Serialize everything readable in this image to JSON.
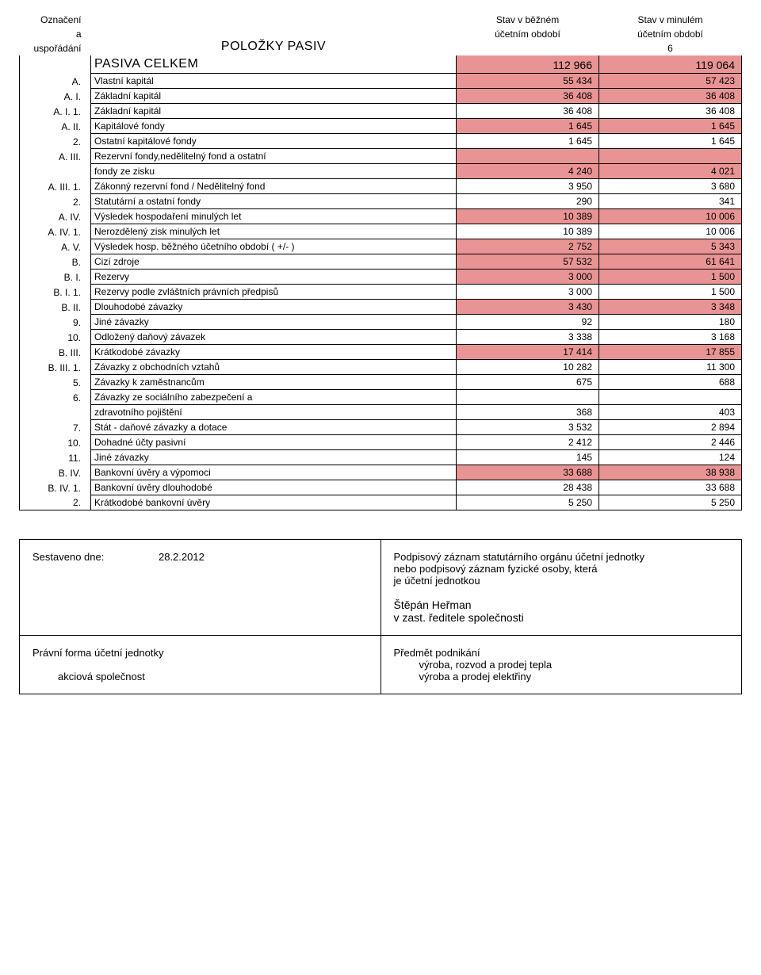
{
  "colors": {
    "highlight": "#e99494",
    "border": "#000000",
    "text": "#000000",
    "background": "#ffffff"
  },
  "fonts": {
    "family": "Arial",
    "base_size_pt": 12,
    "title_size_pt": 16
  },
  "header": {
    "col_code_top": "Označení",
    "col_code_mid": "a",
    "col_code_bot": "uspořádání",
    "title": "POLOŽKY PASIV",
    "col_v1_top": "Stav v běžném",
    "col_v1_bot": "účetním období",
    "col_v2_top": "Stav v minulém",
    "col_v2_bot": "účetním období",
    "page_marker": "6"
  },
  "rows": [
    {
      "code": "",
      "label": "PASIVA  CELKEM",
      "v1": "112 966",
      "v2": "119 064",
      "hl": true,
      "big": true
    },
    {
      "code": "A.",
      "label": "Vlastní kapitál",
      "v1": "55 434",
      "v2": "57 423",
      "hl": true
    },
    {
      "code": "A.  I.",
      "label": "Základní kapitál",
      "v1": "36 408",
      "v2": "36 408",
      "hl": true
    },
    {
      "code": "A.  I.  1.",
      "label": "Základní kapitál",
      "v1": "36 408",
      "v2": "36 408",
      "hl": false
    },
    {
      "code": "A.  II.",
      "label": "Kapitálové fondy",
      "v1": "1 645",
      "v2": "1 645",
      "hl": true
    },
    {
      "code": "2.",
      "label": "Ostatní kapitálové fondy",
      "v1": "1 645",
      "v2": "1 645",
      "hl": false
    },
    {
      "code": "A. III.",
      "label": "Rezervní fondy,nedělitelný fond a ostatní",
      "v1": "",
      "v2": "",
      "hl": true
    },
    {
      "code": "",
      "label": "fondy ze zisku",
      "v1": "4 240",
      "v2": "4 021",
      "hl": true
    },
    {
      "code": "A. III. 1.",
      "label": "Zákonný rezervní fond / Nedělitelný fond",
      "v1": "3 950",
      "v2": "3 680",
      "hl": false
    },
    {
      "code": "2.",
      "label": "Statutární a ostatní fondy",
      "v1": "290",
      "v2": "341",
      "hl": false
    },
    {
      "code": "A. IV.",
      "label": "Výsledek hospodaření minulých let",
      "v1": "10 389",
      "v2": "10 006",
      "hl": true
    },
    {
      "code": "A. IV. 1.",
      "label": "Nerozdělený zisk minulých let",
      "v1": "10 389",
      "v2": "10 006",
      "hl": false
    },
    {
      "code": "A. V.",
      "label": "Výsledek hosp. běžného účetního období ( +/- )",
      "v1": "2 752",
      "v2": "5 343",
      "hl": true,
      "label_hl_partial": true
    },
    {
      "code": "B.",
      "label": "Cizí zdroje",
      "v1": "57 532",
      "v2": "61 641",
      "hl": true
    },
    {
      "code": "B. I.",
      "label": "Rezervy",
      "v1": "3 000",
      "v2": "1 500",
      "hl": true
    },
    {
      "code": "B.  I.    1.",
      "label": "Rezervy podle zvláštních právních předpisů",
      "v1": "3 000",
      "v2": "1 500",
      "hl": false
    },
    {
      "code": "B. II.",
      "label": "Dlouhodobé závazky",
      "v1": "3 430",
      "v2": "3 348",
      "hl": true
    },
    {
      "code": "9.",
      "label": "Jiné závazky",
      "v1": "92",
      "v2": "180",
      "hl": false
    },
    {
      "code": "10.",
      "label": "Odložený daňový závazek",
      "v1": "3 338",
      "v2": "3 168",
      "hl": false
    },
    {
      "code": "B. III.",
      "label": "Krátkodobé závazky",
      "v1": "17 414",
      "v2": "17 855",
      "hl": true
    },
    {
      "code": "B. III. 1.",
      "label": "Závazky z obchodních vztahů",
      "v1": "10 282",
      "v2": "11 300",
      "hl": false
    },
    {
      "code": "5.",
      "label": "Závazky k zaměstnancům",
      "v1": "675",
      "v2": "688",
      "hl": false
    },
    {
      "code": "6.",
      "label": "Závazky ze sociálního zabezpečení a",
      "v1": "",
      "v2": "",
      "hl": false
    },
    {
      "code": "",
      "label": "zdravotního pojištění",
      "v1": "368",
      "v2": "403",
      "hl": false
    },
    {
      "code": "7.",
      "label": "Stát - daňové závazky a dotace",
      "v1": "3 532",
      "v2": "2 894",
      "hl": false
    },
    {
      "code": "10.",
      "label": "Dohadné účty pasivní",
      "v1": "2 412",
      "v2": "2 446",
      "hl": false
    },
    {
      "code": "11.",
      "label": "Jiné závazky",
      "v1": "145",
      "v2": "124",
      "hl": false
    },
    {
      "code": "B. IV.",
      "label": "Bankovní  úvěry a výpomoci",
      "v1": "33 688",
      "v2": "38 938",
      "hl": true
    },
    {
      "code": "B. IV. 1.",
      "label": "Bankovní úvěry dlouhodobé",
      "v1": "28 438",
      "v2": "33 688",
      "hl": false
    },
    {
      "code": "2.",
      "label": "Krátkodobé  bankovní úvěry",
      "v1": "5 250",
      "v2": "5 250",
      "hl": false
    }
  ],
  "footer": {
    "compiled_label": "Sestaveno dne:",
    "compiled_date": "28.2.2012",
    "sig_line1": "Podpisový záznam statutárního orgánu účetní jednotky",
    "sig_line2": "nebo podpisový záznam fyzické osoby, která",
    "sig_line3": "je účetní jednotkou",
    "sig_name": "Štěpán Heřman",
    "sig_role": "v zast. ředitele společnosti",
    "legal_form_label": "Právní forma účetní jednotky",
    "legal_form_value": "akciová společnost",
    "subject_label": "Předmět podnikání",
    "subject_line1": "výroba, rozvod a prodej tepla",
    "subject_line2": "výroba a prodej elektřiny"
  }
}
